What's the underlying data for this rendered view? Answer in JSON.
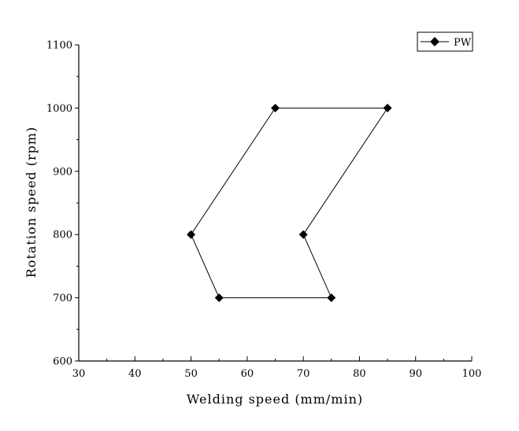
{
  "chart_data": {
    "type": "line",
    "title": "",
    "xlabel": "Welding speed (mm/min)",
    "ylabel": "Rotation speed (rpm)",
    "xlim": [
      30,
      100
    ],
    "ylim": [
      600,
      1100
    ],
    "xticks": [
      30,
      40,
      50,
      60,
      70,
      80,
      90,
      100
    ],
    "yticks": [
      600,
      700,
      800,
      900,
      1000,
      1100
    ],
    "grid": false,
    "legend": {
      "position": "top-right",
      "entries": [
        "PW"
      ]
    },
    "series": [
      {
        "name": "PW",
        "marker": "diamond",
        "color": "#000000",
        "closed": true,
        "points": [
          {
            "x": 55,
            "y": 700
          },
          {
            "x": 75,
            "y": 700
          },
          {
            "x": 70,
            "y": 800
          },
          {
            "x": 85,
            "y": 1000
          },
          {
            "x": 65,
            "y": 1000
          },
          {
            "x": 50,
            "y": 800
          }
        ]
      }
    ]
  }
}
